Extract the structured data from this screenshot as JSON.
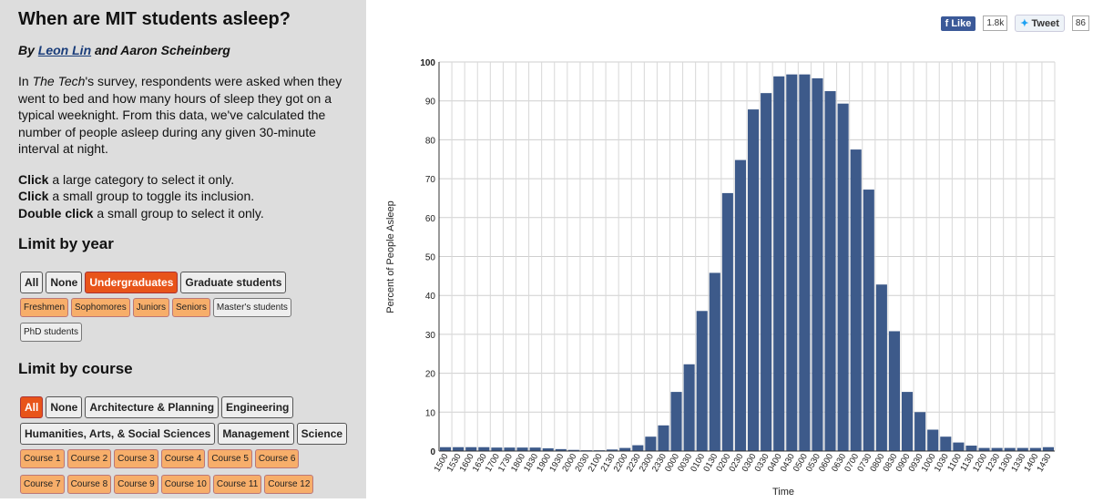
{
  "title": "When are MIT students asleep?",
  "byline": {
    "prefix": "By ",
    "author1": "Leon Lin",
    "mid": " and Aaron Scheinberg"
  },
  "intro": {
    "p1": "In ",
    "italic": "The Tech",
    "p2": "'s survey, respondents were asked when they went to bed and how many hours of sleep they got on a typical weeknight. From this data, we've calculated the number of people asleep during any given 30-minute interval at night."
  },
  "instructions": [
    {
      "bold": "Click",
      "rest": " a large category to select it only."
    },
    {
      "bold": "Click",
      "rest": " a small group to toggle its inclusion."
    },
    {
      "bold": "Double click",
      "rest": " a small group to select it only."
    }
  ],
  "year_section": {
    "heading": "Limit by year",
    "large": [
      {
        "label": "All",
        "selected": false
      },
      {
        "label": "None",
        "selected": false
      },
      {
        "label": "Undergraduates",
        "selected": true
      },
      {
        "label": "Graduate students",
        "selected": false
      }
    ],
    "small_row1": [
      {
        "label": "Freshmen",
        "selected": true
      },
      {
        "label": "Sophomores",
        "selected": true
      },
      {
        "label": "Juniors",
        "selected": true
      },
      {
        "label": "Seniors",
        "selected": true
      },
      {
        "label": "Master's students",
        "selected": false
      }
    ],
    "small_row2": [
      {
        "label": "PhD students",
        "selected": false
      }
    ]
  },
  "course_section": {
    "heading": "Limit by course",
    "large_row1": [
      {
        "label": "All",
        "selected": true
      },
      {
        "label": "None",
        "selected": false
      },
      {
        "label": "Architecture & Planning",
        "selected": false
      },
      {
        "label": "Engineering",
        "selected": false
      }
    ],
    "large_row2": [
      {
        "label": "Humanities, Arts, & Social Sciences",
        "selected": false
      },
      {
        "label": "Management",
        "selected": false
      },
      {
        "label": "Science",
        "selected": false
      }
    ],
    "small_row1": [
      {
        "label": "Course 1",
        "selected": true
      },
      {
        "label": "Course 2",
        "selected": true
      },
      {
        "label": "Course 3",
        "selected": true
      },
      {
        "label": "Course 4",
        "selected": true
      },
      {
        "label": "Course 5",
        "selected": true
      },
      {
        "label": "Course 6",
        "selected": true
      }
    ],
    "small_row2": [
      {
        "label": "Course 7",
        "selected": true
      },
      {
        "label": "Course 8",
        "selected": true
      },
      {
        "label": "Course 9",
        "selected": true
      },
      {
        "label": "Course 10",
        "selected": true
      },
      {
        "label": "Course 11",
        "selected": true
      },
      {
        "label": "Course 12",
        "selected": true
      }
    ]
  },
  "social": {
    "fb_label": "Like",
    "fb_count": "1.8k",
    "tw_label": "Tweet",
    "tw_count": "86",
    "fb_color": "#3b5998",
    "tw_color": "#1da1f2"
  },
  "colors": {
    "bar": "#3d5a8a",
    "selected": "#e8541a",
    "small_selected": "#f7ae6a",
    "sidebar_bg": "#dddddd"
  },
  "chart_data": {
    "type": "bar",
    "title": "",
    "xlabel": "Time",
    "ylabel": "Percent of People Asleep",
    "ylim": [
      0,
      100
    ],
    "yticks": [
      0,
      10,
      20,
      30,
      40,
      50,
      60,
      70,
      80,
      90,
      100
    ],
    "grid": true,
    "categories": [
      "1500",
      "1530",
      "1600",
      "1630",
      "1700",
      "1730",
      "1800",
      "1830",
      "1900",
      "1930",
      "2000",
      "2030",
      "2100",
      "2130",
      "2200",
      "2230",
      "2300",
      "2330",
      "0000",
      "0030",
      "0100",
      "0130",
      "0200",
      "0230",
      "0300",
      "0330",
      "0400",
      "0430",
      "0500",
      "0530",
      "0600",
      "0630",
      "0700",
      "0730",
      "0800",
      "0830",
      "0900",
      "0930",
      "1000",
      "1030",
      "1100",
      "1130",
      "1200",
      "1230",
      "1300",
      "1330",
      "1400",
      "1430"
    ],
    "values": [
      1.0,
      1.0,
      1.0,
      1.0,
      0.9,
      0.9,
      0.9,
      0.9,
      0.7,
      0.5,
      0.3,
      0.2,
      0.2,
      0.4,
      0.8,
      1.5,
      3.7,
      6.6,
      15.2,
      22.3,
      36.0,
      45.8,
      66.3,
      74.8,
      87.8,
      92.0,
      96.3,
      96.8,
      96.8,
      95.8,
      92.5,
      89.3,
      77.5,
      67.2,
      42.8,
      30.8,
      15.2,
      10.0,
      5.5,
      3.7,
      2.2,
      1.4,
      0.8,
      0.8,
      0.8,
      0.8,
      0.8,
      1.0
    ]
  }
}
